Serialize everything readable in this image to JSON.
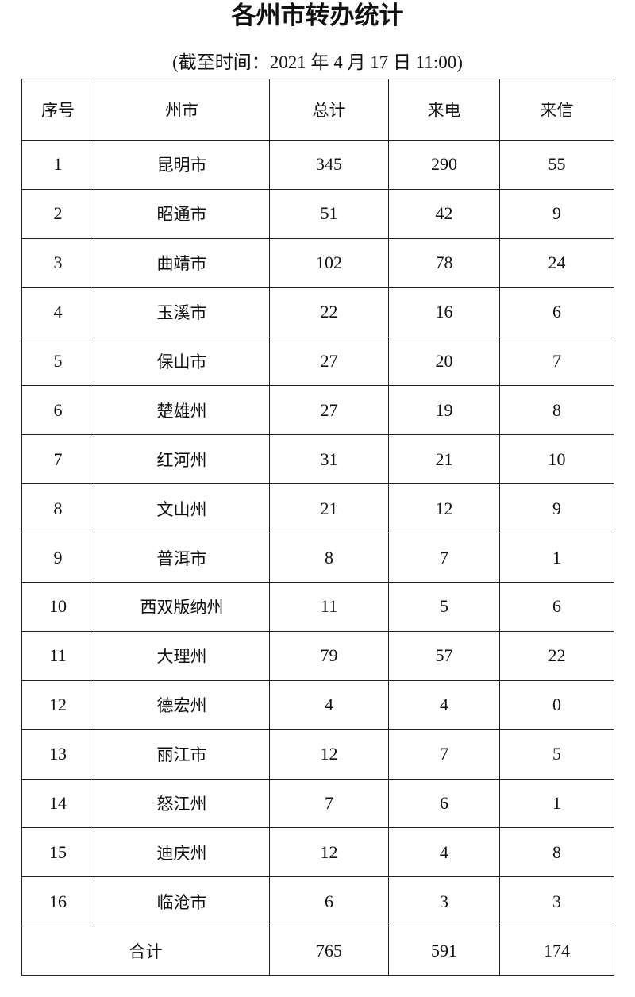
{
  "title": "各州市转办统计",
  "subtitle": "(截至时间：2021 年 4 月 17 日 11:00)",
  "table": {
    "headers": [
      "序号",
      "州市",
      "总计",
      "来电",
      "来信"
    ],
    "rows": [
      [
        "1",
        "昆明市",
        "345",
        "290",
        "55"
      ],
      [
        "2",
        "昭通市",
        "51",
        "42",
        "9"
      ],
      [
        "3",
        "曲靖市",
        "102",
        "78",
        "24"
      ],
      [
        "4",
        "玉溪市",
        "22",
        "16",
        "6"
      ],
      [
        "5",
        "保山市",
        "27",
        "20",
        "7"
      ],
      [
        "6",
        "楚雄州",
        "27",
        "19",
        "8"
      ],
      [
        "7",
        "红河州",
        "31",
        "21",
        "10"
      ],
      [
        "8",
        "文山州",
        "21",
        "12",
        "9"
      ],
      [
        "9",
        "普洱市",
        "8",
        "7",
        "1"
      ],
      [
        "10",
        "西双版纳州",
        "11",
        "5",
        "6"
      ],
      [
        "11",
        "大理州",
        "79",
        "57",
        "22"
      ],
      [
        "12",
        "德宏州",
        "4",
        "4",
        "0"
      ],
      [
        "13",
        "丽江市",
        "12",
        "7",
        "5"
      ],
      [
        "14",
        "怒江州",
        "7",
        "6",
        "1"
      ],
      [
        "15",
        "迪庆州",
        "12",
        "4",
        "8"
      ],
      [
        "16",
        "临沧市",
        "6",
        "3",
        "3"
      ]
    ],
    "total": {
      "label": "合计",
      "sum": "765",
      "phone": "591",
      "letter": "174"
    }
  }
}
